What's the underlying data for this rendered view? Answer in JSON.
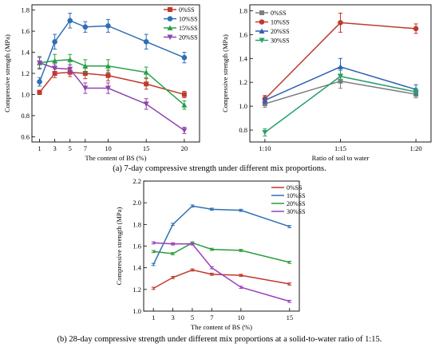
{
  "captions": {
    "a": "(a) 7-day compressive strength under different mix proportions.",
    "b": "(b) 28-day compressive strength under different mix proportions at a solid-to-water ratio of 1:15."
  },
  "chart_data": [
    {
      "id": "a1",
      "type": "line",
      "xlabel": "The content of BS (%)",
      "ylabel": "Compressive strength (MPa)",
      "x": [
        1,
        3,
        5,
        7,
        10,
        15,
        20
      ],
      "xticks": [
        "1",
        "3",
        "5",
        "7",
        "10",
        "15",
        "20"
      ],
      "ylim": [
        0.55,
        1.85
      ],
      "yticks": [
        "0.6",
        "0.8",
        "1.0",
        "1.2",
        "1.4",
        "1.6",
        "1.8"
      ],
      "legend_position": "top-right",
      "series": [
        {
          "name": "0%SS",
          "color": "#c0392b",
          "marker": "square",
          "values": [
            1.02,
            1.2,
            1.21,
            1.2,
            1.18,
            1.1,
            1.0
          ],
          "err": [
            0.02,
            0.04,
            0.04,
            0.05,
            0.05,
            0.05,
            0.03
          ]
        },
        {
          "name": "10%SS",
          "color": "#2f6fb5",
          "marker": "circle",
          "values": [
            1.12,
            1.5,
            1.7,
            1.64,
            1.65,
            1.5,
            1.35
          ],
          "err": [
            0.04,
            0.07,
            0.07,
            0.05,
            0.06,
            0.07,
            0.05
          ]
        },
        {
          "name": "15%SS",
          "color": "#27a046",
          "marker": "triangle-up",
          "values": [
            1.3,
            1.32,
            1.33,
            1.27,
            1.27,
            1.21,
            0.9
          ],
          "err": [
            0.06,
            0.06,
            0.05,
            0.06,
            0.06,
            0.05,
            0.04
          ]
        },
        {
          "name": "20%SS",
          "color": "#8e44ad",
          "marker": "triangle-down",
          "values": [
            1.3,
            1.25,
            1.24,
            1.06,
            1.06,
            0.91,
            0.66
          ],
          "err": [
            0.05,
            0.04,
            0.04,
            0.05,
            0.05,
            0.05,
            0.03
          ]
        }
      ]
    },
    {
      "id": "a2",
      "type": "line",
      "xlabel": "Ratio of soil to water",
      "ylabel": "Compressive strength (MPa)",
      "categories": [
        "1:10",
        "1:15",
        "1:20"
      ],
      "ylim": [
        0.7,
        1.85
      ],
      "yticks": [
        "0.8",
        "1.0",
        "1.2",
        "1.4",
        "1.6",
        "1.8"
      ],
      "legend_position": "top-left",
      "series": [
        {
          "name": "0%SS",
          "color": "#7f7f7f",
          "marker": "square",
          "values": [
            1.02,
            1.21,
            1.1
          ],
          "err": [
            0.03,
            0.06,
            0.03
          ]
        },
        {
          "name": "10%SS",
          "color": "#c0392b",
          "marker": "circle",
          "values": [
            1.06,
            1.7,
            1.65
          ],
          "err": [
            0.03,
            0.08,
            0.04
          ]
        },
        {
          "name": "20%SS",
          "color": "#2f5fb5",
          "marker": "triangle-up",
          "values": [
            1.05,
            1.33,
            1.14
          ],
          "err": [
            0.03,
            0.07,
            0.04
          ]
        },
        {
          "name": "30%SS",
          "color": "#27a06b",
          "marker": "triangle-down",
          "values": [
            0.78,
            1.25,
            1.12
          ],
          "err": [
            0.03,
            0.05,
            0.03
          ]
        }
      ]
    },
    {
      "id": "b",
      "type": "line",
      "xlabel": "The content of BS (%)",
      "ylabel": "Compressive strength (MPa)",
      "x": [
        1,
        3,
        5,
        7,
        10,
        15
      ],
      "xticks": [
        "1",
        "3",
        "5",
        "7",
        "10",
        "15"
      ],
      "ylim": [
        1.0,
        2.2
      ],
      "yticks": [
        "1.0",
        "1.2",
        "1.4",
        "1.6",
        "1.8",
        "2.0",
        "2.2"
      ],
      "legend_position": "top-right",
      "series": [
        {
          "name": "0%SS",
          "color": "#c0392b",
          "marker": "none",
          "values": [
            1.21,
            1.31,
            1.38,
            1.34,
            1.33,
            1.25
          ],
          "err": [
            0.01,
            0.01,
            0.01,
            0.01,
            0.01,
            0.01
          ]
        },
        {
          "name": "10%SS",
          "color": "#2f6fb5",
          "marker": "none",
          "values": [
            1.43,
            1.8,
            1.97,
            1.94,
            1.93,
            1.78
          ],
          "err": [
            0.01,
            0.01,
            0.01,
            0.01,
            0.01,
            0.01
          ]
        },
        {
          "name": "20%SS",
          "color": "#2e9b3a",
          "marker": "none",
          "values": [
            1.55,
            1.53,
            1.63,
            1.57,
            1.56,
            1.45
          ],
          "err": [
            0.01,
            0.01,
            0.01,
            0.01,
            0.01,
            0.01
          ]
        },
        {
          "name": "30%SS",
          "color": "#9b3fbf",
          "marker": "none",
          "values": [
            1.63,
            1.62,
            1.62,
            1.4,
            1.22,
            1.09
          ],
          "err": [
            0.01,
            0.01,
            0.01,
            0.01,
            0.01,
            0.01
          ]
        }
      ]
    }
  ]
}
